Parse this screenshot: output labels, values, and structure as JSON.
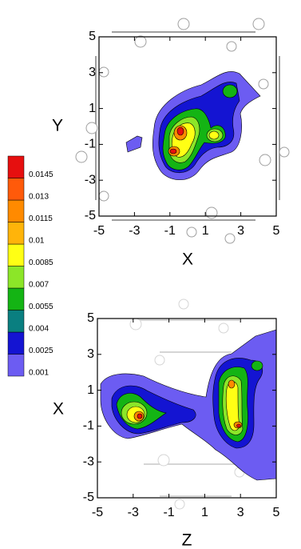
{
  "chart_data": [
    {
      "type": "contour",
      "xlabel": "X",
      "ylabel": "Y",
      "xlim": [
        -5,
        5
      ],
      "ylim": [
        -5,
        5
      ],
      "xticks": [
        -5,
        -3,
        -1,
        1,
        3,
        5
      ],
      "yticks": [
        -5,
        -3,
        -1,
        1,
        3,
        5
      ]
    },
    {
      "type": "contour",
      "xlabel": "Z",
      "ylabel": "X",
      "xlim": [
        -5,
        5
      ],
      "ylim": [
        -5,
        5
      ],
      "xticks": [
        -5,
        -3,
        -1,
        1,
        3,
        5
      ],
      "yticks": [
        -5,
        -3,
        -1,
        1,
        3,
        5
      ]
    },
    {
      "type": "colorbar",
      "levels": [
        0.001,
        0.0025,
        0.004,
        0.0055,
        0.007,
        0.0085,
        0.01,
        0.0115,
        0.013,
        0.0145
      ],
      "colors": [
        "#6c5cf2",
        "#1414d2",
        "#0a7f80",
        "#14b414",
        "#8ce628",
        "#ffff14",
        "#ffb40a",
        "#ff8a00",
        "#ff5a0a",
        "#e60f0f"
      ]
    }
  ]
}
